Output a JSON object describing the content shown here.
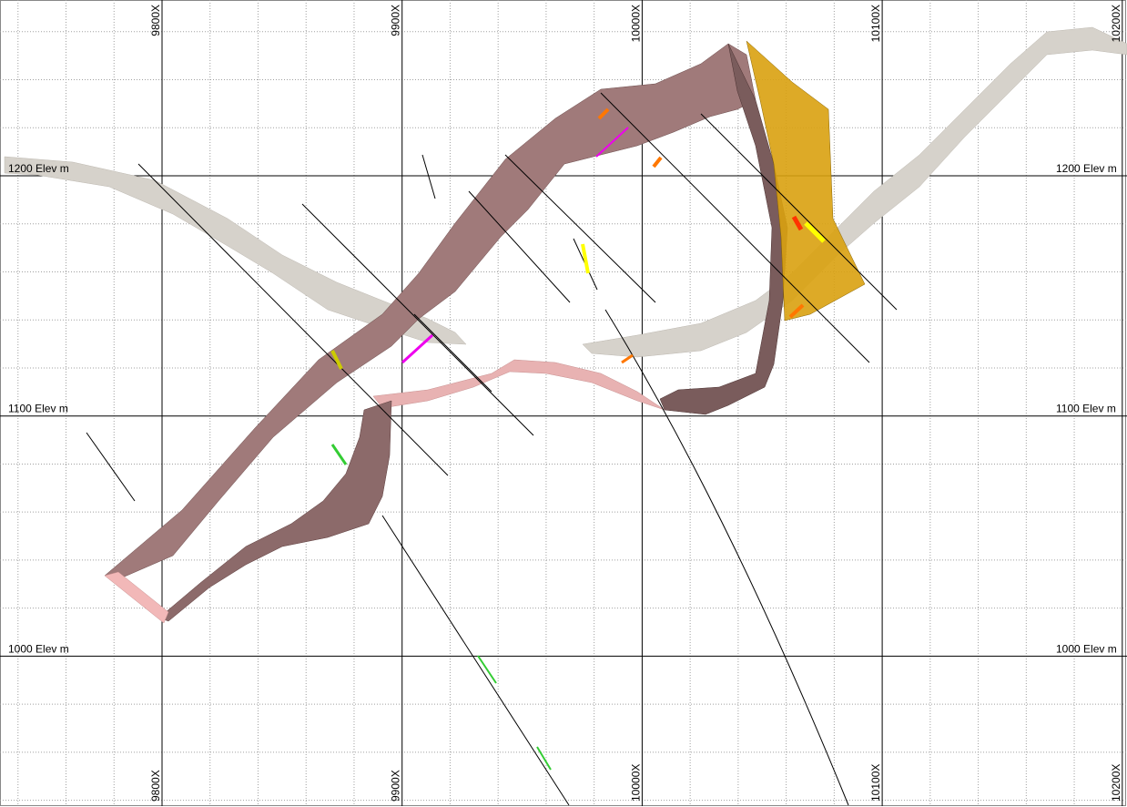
{
  "section": {
    "x_labels": [
      "9800X",
      "9900X",
      "10000X",
      "10100X",
      "10200X"
    ],
    "elevation_labels": [
      "1200 Elev m",
      "1100 Elev m",
      "1000 Elev m"
    ]
  }
}
